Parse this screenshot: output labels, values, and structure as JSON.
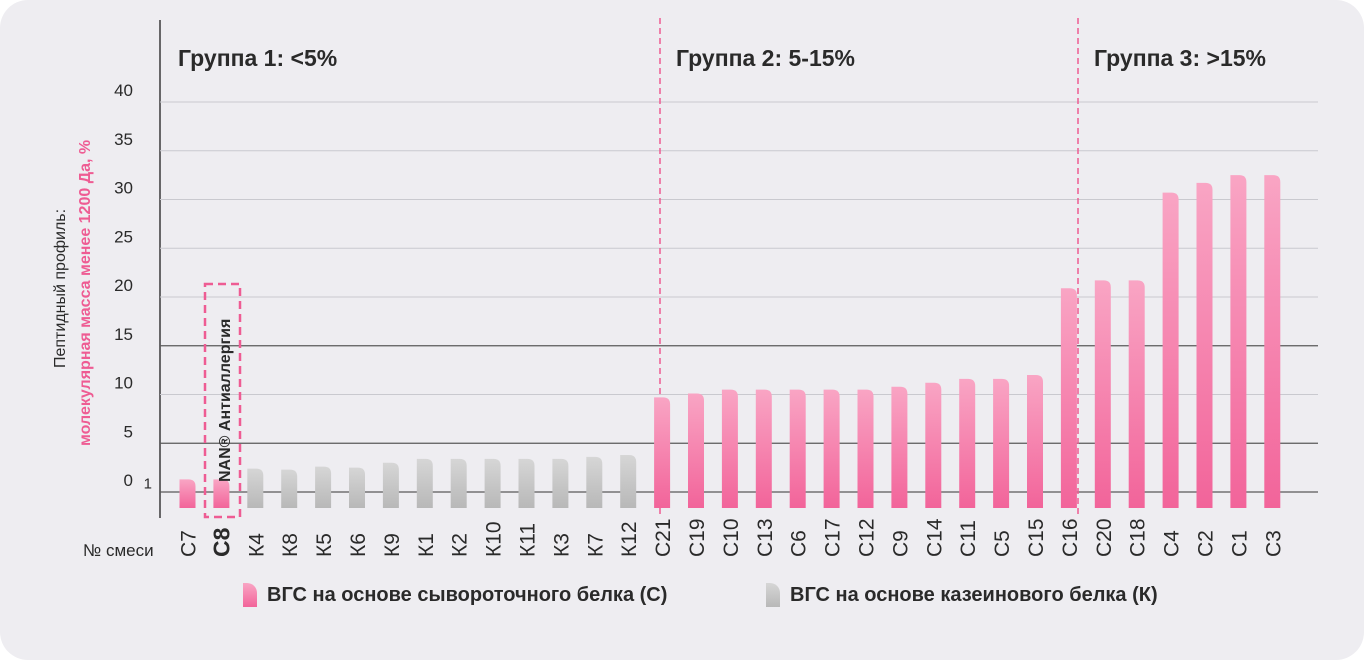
{
  "chart_data": {
    "type": "bar",
    "ylabel_line1": "Пептидный профиль:",
    "ylabel_line2": "молекулярная масса менее 1200 Да, %",
    "xlabel": "№ смеси",
    "yticks": [
      "0",
      "1",
      "5",
      "10",
      "15",
      "20",
      "25",
      "30",
      "35",
      "40"
    ],
    "ylim": [
      0,
      40
    ],
    "grid": true,
    "groups": [
      {
        "title": "Группа 1: <5%"
      },
      {
        "title": "Группа 2: 5-15%"
      },
      {
        "title": "Группа 3: >15%"
      }
    ],
    "categories": [
      "С7",
      "С8",
      "К4",
      "К8",
      "К5",
      "К6",
      "К9",
      "К1",
      "К2",
      "К10",
      "К11",
      "К3",
      "К7",
      "К12",
      "С21",
      "С19",
      "С10",
      "С13",
      "С6",
      "С17",
      "С12",
      "С9",
      "С14",
      "С11",
      "С5",
      "С15",
      "С16",
      "С20",
      "С18",
      "С4",
      "С2",
      "С1",
      "С3"
    ],
    "values": [
      1.3,
      1.3,
      2.4,
      2.3,
      2.6,
      2.5,
      3.0,
      3.4,
      3.4,
      3.4,
      3.4,
      3.4,
      3.6,
      3.8,
      9.7,
      10.1,
      10.5,
      10.5,
      10.5,
      10.5,
      10.5,
      10.8,
      11.2,
      11.6,
      11.6,
      12.0,
      20.9,
      21.7,
      21.7,
      30.7,
      31.7,
      32.5,
      32.5
    ],
    "series_type": [
      "whey",
      "whey",
      "casein",
      "casein",
      "casein",
      "casein",
      "casein",
      "casein",
      "casein",
      "casein",
      "casein",
      "casein",
      "casein",
      "casein",
      "whey",
      "whey",
      "whey",
      "whey",
      "whey",
      "whey",
      "whey",
      "whey",
      "whey",
      "whey",
      "whey",
      "whey",
      "whey",
      "whey",
      "whey",
      "whey",
      "whey",
      "whey",
      "whey"
    ],
    "highlight": {
      "category": "С8",
      "label": "NAN® Антиаллергия"
    },
    "legend": [
      {
        "key": "whey",
        "label": "ВГС на основе сывороточного белка (С)"
      },
      {
        "key": "casein",
        "label": "ВГС на основе казеинового  белка (К)"
      }
    ],
    "colors": {
      "whey": "#f36fa0",
      "whey_light": "#f9a2c2",
      "casein": "#bdbdbd",
      "casein_light": "#dedede",
      "accent": "#ee5c93",
      "text": "#2a2a2a"
    }
  }
}
